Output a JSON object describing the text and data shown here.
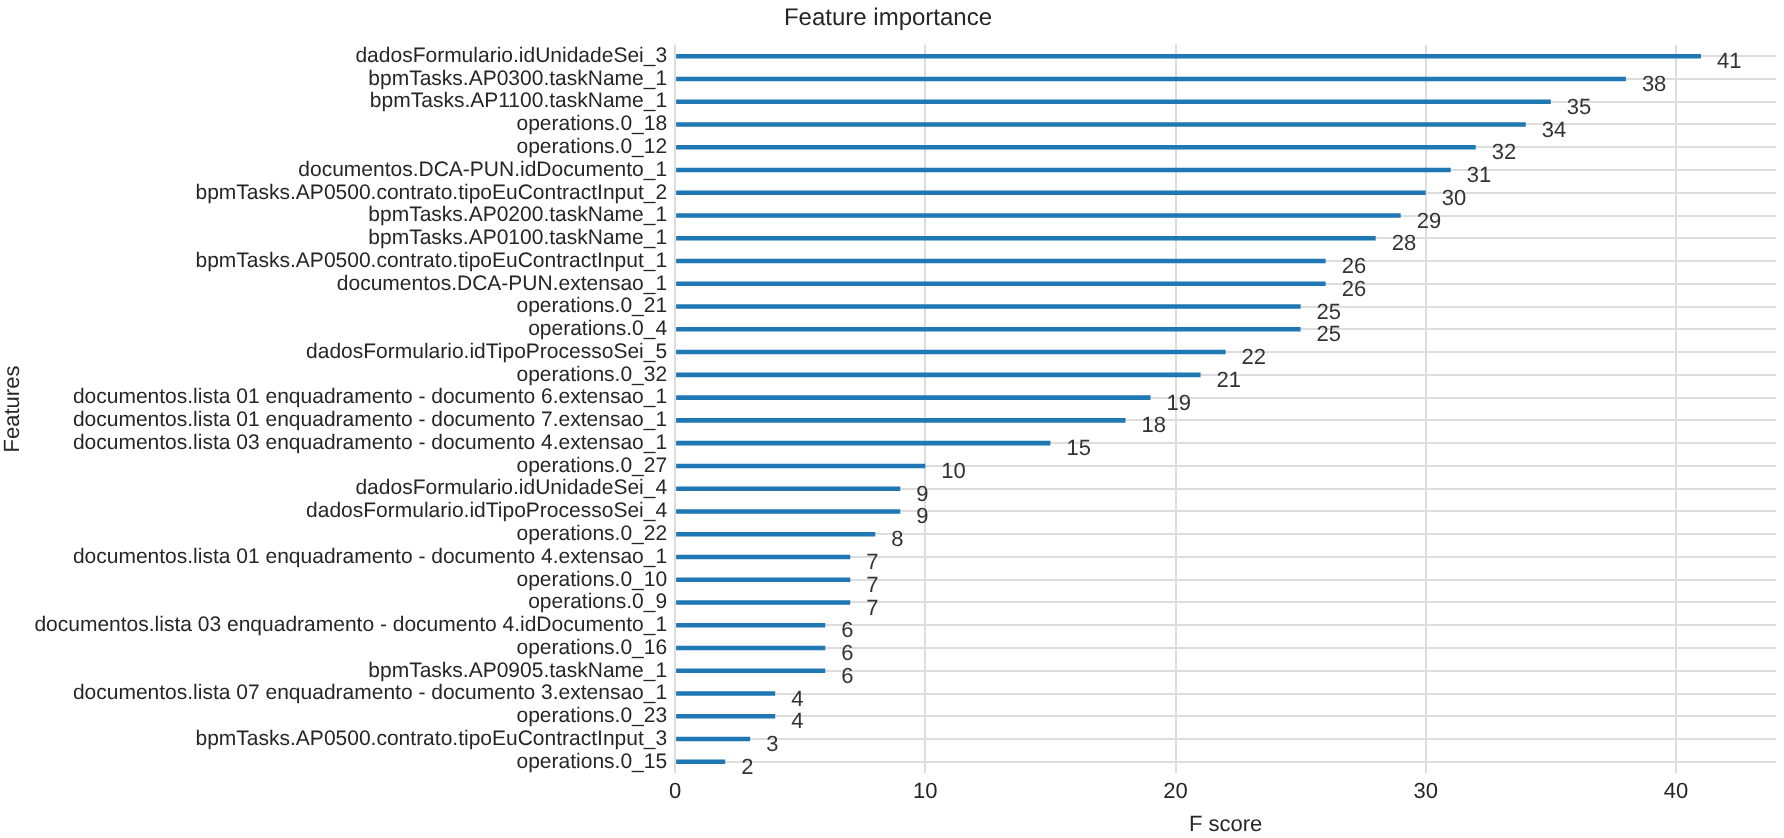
{
  "chart_data": {
    "type": "bar",
    "orientation": "horizontal",
    "title": "Feature importance",
    "xlabel": "F score",
    "ylabel": "Features",
    "categories": [
      "dadosFormulario.idUnidadeSei_3",
      "bpmTasks.AP0300.taskName_1",
      "bpmTasks.AP1100.taskName_1",
      "operations.0_18",
      "operations.0_12",
      "documentos.DCA-PUN.idDocumento_1",
      "bpmTasks.AP0500.contrato.tipoEuContractInput_2",
      "bpmTasks.AP0200.taskName_1",
      "bpmTasks.AP0100.taskName_1",
      "bpmTasks.AP0500.contrato.tipoEuContractInput_1",
      "documentos.DCA-PUN.extensao_1",
      "operations.0_21",
      "operations.0_4",
      "dadosFormulario.idTipoProcessoSei_5",
      "operations.0_32",
      "documentos.lista 01 enquadramento - documento 6.extensao_1",
      "documentos.lista 01 enquadramento - documento 7.extensao_1",
      "documentos.lista 03 enquadramento - documento 4.extensao_1",
      "operations.0_27",
      "dadosFormulario.idUnidadeSei_4",
      "dadosFormulario.idTipoProcessoSei_4",
      "operations.0_22",
      "documentos.lista 01 enquadramento - documento 4.extensao_1",
      "operations.0_10",
      "operations.0_9",
      "documentos.lista 03 enquadramento - documento 4.idDocumento_1",
      "operations.0_16",
      "bpmTasks.AP0905.taskName_1",
      "documentos.lista 07 enquadramento - documento 3.extensao_1",
      "operations.0_23",
      "bpmTasks.AP0500.contrato.tipoEuContractInput_3",
      "operations.0_15"
    ],
    "values": [
      41,
      38,
      35,
      34,
      32,
      31,
      30,
      29,
      28,
      26,
      26,
      25,
      25,
      22,
      21,
      19,
      18,
      15,
      10,
      9,
      9,
      8,
      7,
      7,
      7,
      6,
      6,
      6,
      4,
      4,
      3,
      2
    ],
    "color": "#1f77b4",
    "xlim": [
      0,
      44
    ],
    "xticks": [
      0,
      10,
      20,
      30,
      40
    ],
    "grid": true,
    "data_labels": true,
    "legend": false
  }
}
